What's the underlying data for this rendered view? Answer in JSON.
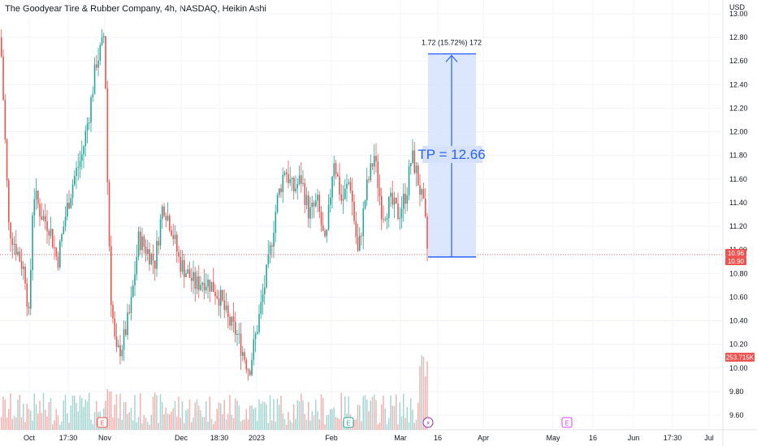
{
  "header": {
    "title": "The Goodyear Tire & Rubber Company, 4h, NASDAQ, Heikin Ashi"
  },
  "currency": "USD",
  "colors": {
    "up": "#26a69a",
    "down": "#ef5350",
    "volUp": "#a5d6d2",
    "volDown": "#f5b2b1",
    "measure": "#2962ff",
    "measureFill": "#d6e2fb",
    "grid": "#f0f3fa",
    "priceLine": "#ef5350"
  },
  "price_labels": [
    {
      "text": "10.96",
      "value": 10.96,
      "color": "#ef5350"
    },
    {
      "text": "10.90",
      "value": 10.9,
      "color": "#ef5350"
    }
  ],
  "volume_label": {
    "text": "253.715K",
    "color": "#ef5350"
  },
  "measure_tool": {
    "label": "1.72 (15.72%) 172",
    "annotation": "TP = 12.66",
    "from_price": 10.94,
    "to_price": 12.66
  },
  "events": [
    {
      "letter": "E",
      "kind": "earnings",
      "color": "#ef5350",
      "x_date": "Nov"
    },
    {
      "letter": "E",
      "kind": "earnings",
      "color": "#26a69a",
      "x_date": "Feb"
    },
    {
      "letter": "⚡",
      "kind": "flash",
      "color": "#9c27b0",
      "x_date": "Mar"
    },
    {
      "letter": "E",
      "kind": "earnings-upcoming",
      "color": "#e040fb",
      "x_date": "May"
    }
  ],
  "chart_data": {
    "type": "candlestick",
    "style": "Heikin Ashi",
    "ylim": [
      9.5,
      13.0
    ],
    "y_ticks": [
      9.6,
      9.8,
      10.0,
      10.2,
      10.4,
      10.6,
      10.8,
      11.0,
      11.2,
      11.4,
      11.6,
      11.8,
      12.0,
      12.2,
      12.4,
      12.6,
      12.8,
      13.0
    ],
    "x_tick_labels": [
      "Oct",
      "17:30",
      "Nov",
      "Dec",
      "18:30",
      "2023",
      "Feb",
      "Mar",
      "16",
      "Apr",
      "May",
      "16",
      "Jun",
      "17:30",
      "Jul"
    ],
    "price_path": [
      [
        0,
        12.8
      ],
      [
        10,
        11.2
      ],
      [
        20,
        11.0
      ],
      [
        30,
        10.8
      ],
      [
        35,
        10.4
      ],
      [
        40,
        11.5
      ],
      [
        50,
        11.3
      ],
      [
        60,
        11.2
      ],
      [
        70,
        10.9
      ],
      [
        80,
        11.3
      ],
      [
        90,
        11.6
      ],
      [
        100,
        11.8
      ],
      [
        110,
        12.2
      ],
      [
        118,
        12.6
      ],
      [
        124,
        12.7
      ],
      [
        128,
        12.85
      ],
      [
        132,
        11.4
      ],
      [
        136,
        10.6
      ],
      [
        142,
        10.1
      ],
      [
        150,
        10.2
      ],
      [
        160,
        10.5
      ],
      [
        170,
        11.1
      ],
      [
        180,
        11.0
      ],
      [
        190,
        10.9
      ],
      [
        200,
        11.4
      ],
      [
        210,
        11.2
      ],
      [
        220,
        10.9
      ],
      [
        230,
        10.8
      ],
      [
        240,
        10.7
      ],
      [
        250,
        10.75
      ],
      [
        260,
        10.7
      ],
      [
        270,
        10.6
      ],
      [
        280,
        10.4
      ],
      [
        290,
        10.3
      ],
      [
        300,
        10.1
      ],
      [
        306,
        9.98
      ],
      [
        312,
        10.2
      ],
      [
        320,
        10.5
      ],
      [
        330,
        10.9
      ],
      [
        340,
        11.4
      ],
      [
        350,
        11.7
      ],
      [
        360,
        11.5
      ],
      [
        370,
        11.6
      ],
      [
        380,
        11.3
      ],
      [
        390,
        11.4
      ],
      [
        400,
        11.0
      ],
      [
        410,
        11.8
      ],
      [
        420,
        11.4
      ],
      [
        430,
        11.6
      ],
      [
        440,
        10.95
      ],
      [
        450,
        11.5
      ],
      [
        460,
        11.8
      ],
      [
        470,
        11.3
      ],
      [
        480,
        11.4
      ],
      [
        490,
        11.3
      ],
      [
        500,
        11.5
      ],
      [
        506,
        11.8
      ],
      [
        512,
        11.65
      ],
      [
        518,
        11.45
      ],
      [
        522,
        11.3
      ],
      [
        526,
        10.94
      ]
    ]
  }
}
